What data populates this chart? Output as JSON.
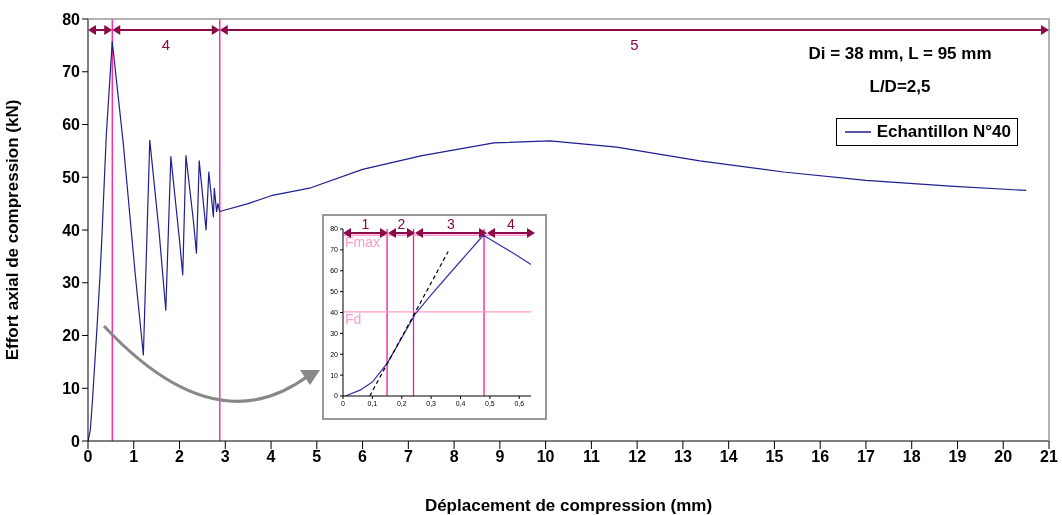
{
  "chart_data": [
    {
      "type": "line",
      "xlabel": "Déplacement de compression (mm)",
      "ylabel": "Effort axial de compression (kN)",
      "xlim": [
        0,
        21
      ],
      "ylim": [
        0,
        80
      ],
      "xticks": [
        0,
        1,
        2,
        3,
        4,
        5,
        6,
        7,
        8,
        9,
        10,
        11,
        12,
        13,
        14,
        15,
        16,
        17,
        18,
        19,
        20,
        21
      ],
      "yticks": [
        0,
        10,
        20,
        30,
        40,
        50,
        60,
        70,
        80
      ],
      "series": [
        {
          "name": "Echantillon N°40",
          "color": "#1f1f8f",
          "x": [
            0,
            0.05,
            0.1,
            0.2,
            0.26,
            0.3,
            0.4,
            0.53,
            0.77,
            1.03,
            1.21,
            1.35,
            1.55,
            1.7,
            1.81,
            2.0,
            2.07,
            2.14,
            2.3,
            2.37,
            2.43,
            2.58,
            2.64,
            2.74,
            2.76,
            2.81,
            2.84,
            2.88,
            3.5,
            4,
            4.87,
            6,
            7.3,
            8.87,
            10.1,
            11.55,
            13.37,
            15.2,
            17.0,
            18.84,
            20.5
          ],
          "values": [
            0,
            2,
            8,
            22,
            31,
            38,
            58,
            75.7,
            56.5,
            31.8,
            16.3,
            57,
            40,
            24.8,
            53.9,
            38,
            31.5,
            54.1,
            42,
            35.6,
            53.1,
            40,
            51,
            42.5,
            47.9,
            43.5,
            45,
            43.5,
            45,
            46.5,
            48,
            51.5,
            54.1,
            56.5,
            56.9,
            55.7,
            53.1,
            51,
            49.4,
            48.3,
            47.5
          ]
        }
      ],
      "legend": "top right",
      "ref_lines": [
        {
          "axis": "x",
          "value": 0.53,
          "color": "#ff1493"
        },
        {
          "axis": "x",
          "value": 2.88,
          "color": "#ff1493"
        }
      ],
      "annotations": [
        "Di = 38 mm, L = 95 mm",
        "L/D=2,5",
        "4",
        "5"
      ]
    },
    {
      "type": "line",
      "xlim": [
        0,
        0.64
      ],
      "ylim": [
        0,
        80
      ],
      "xticks": [
        0,
        {
          "value": 0.1,
          "label": "0,1"
        },
        {
          "value": 0.2,
          "label": "0,2"
        },
        {
          "value": 0.3,
          "label": "0,3"
        },
        {
          "value": 0.4,
          "label": "0,4"
        },
        {
          "value": 0.5,
          "label": "0,5"
        },
        {
          "value": 0.6,
          "label": "0,6"
        }
      ],
      "yticks": [
        0,
        10,
        20,
        30,
        40,
        50,
        60,
        70,
        80
      ],
      "series": [
        {
          "color": "#3333aa",
          "x": [
            0.008,
            0.058,
            0.1,
            0.152,
            0.247,
            0.3,
            0.39,
            0.478,
            0.513,
            0.58,
            0.64
          ],
          "values": [
            0,
            2.8,
            6.7,
            16,
            39.5,
            48.4,
            63,
            77,
            74,
            68.4,
            63
          ]
        },
        {
          "color": "#000000",
          "line_style": "dashed",
          "x": [
            0.091,
            0.358
          ],
          "values": [
            0,
            69.2
          ]
        }
      ],
      "ref_lines": [
        {
          "axis": "x",
          "value": 0.15,
          "color": "#ff1493"
        },
        {
          "axis": "x",
          "value": 0.24,
          "color": "#ff1493"
        },
        {
          "axis": "x",
          "value": 0.48,
          "color": "#ff1493"
        },
        {
          "axis": "y",
          "value": 77,
          "label": "Fmax",
          "color": "#ff99cc"
        },
        {
          "axis": "y",
          "value": 40.3,
          "label": "Fd",
          "color": "#ff99cc"
        }
      ],
      "annotations": [
        "1",
        "2",
        "3",
        "4"
      ]
    }
  ]
}
